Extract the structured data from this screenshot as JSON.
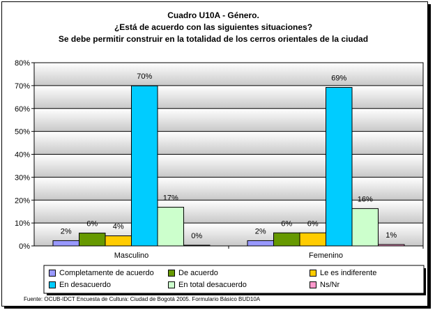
{
  "titles": {
    "line1": "Cuadro U10A - Género.",
    "line2": "¿Está de acuerdo con las siguientes situaciones?",
    "line3": "Se debe permitir construir en la totalidad de los cerros orientales de la ciudad"
  },
  "source": "Fuente: OCUB-IDCT Encuesta de Cultura: Ciudad de Bogotá 2005. Formulario Básico BUD10A",
  "colors": {
    "plot_bg": "#c0c0c0",
    "gridline": "#000000"
  },
  "chart_data": {
    "type": "bar",
    "categories": [
      "Masculino",
      "Femenino"
    ],
    "ylim": [
      0,
      80
    ],
    "yticks": [
      0,
      10,
      20,
      30,
      40,
      50,
      60,
      70,
      80
    ],
    "ytick_labels": [
      "0%",
      "10%",
      "20%",
      "30%",
      "40%",
      "50%",
      "60%",
      "70%",
      "80%"
    ],
    "grid": true,
    "legend_position": "bottom",
    "series": [
      {
        "name": "Completamente de acuerdo",
        "color": "#9999ff",
        "values": [
          2.3,
          2.3
        ],
        "labels": [
          "2%",
          "2%"
        ]
      },
      {
        "name": "De acuerdo",
        "color": "#669900",
        "values": [
          5.6,
          5.7
        ],
        "labels": [
          "6%",
          "6%"
        ]
      },
      {
        "name": "Le es indiferente",
        "color": "#ffcc00",
        "values": [
          4.4,
          5.7
        ],
        "labels": [
          "4%",
          "6%"
        ]
      },
      {
        "name": "En desacuerdo",
        "color": "#00ccff",
        "values": [
          69.9,
          69.2
        ],
        "labels": [
          "70%",
          "69%"
        ]
      },
      {
        "name": "En total desacuerdo",
        "color": "#ccffcc",
        "values": [
          16.9,
          16.3
        ],
        "labels": [
          "17%",
          "16%"
        ]
      },
      {
        "name": "Ns/Nr",
        "color": "#ff99cc",
        "values": [
          0.3,
          0.6
        ],
        "labels": [
          "0%",
          "1%"
        ]
      }
    ]
  }
}
